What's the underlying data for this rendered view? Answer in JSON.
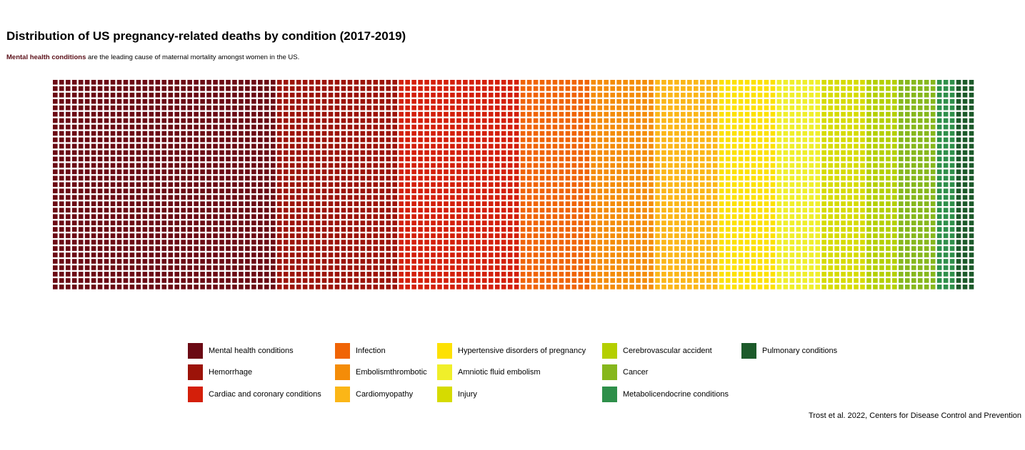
{
  "header": {
    "title": "Distribution of US pregnancy-related deaths by condition (2017-2019)",
    "subtitle_highlight": "Mental health conditions",
    "subtitle_rest": " are the leading cause of maternal mortality amongst women in the US."
  },
  "caption": "Trost et al. 2022, Centers for Disease Control and Prevention",
  "chart_data": {
    "type": "waffle",
    "title": "Distribution of US pregnancy-related deaths by condition (2017-2019)",
    "rows": 33,
    "columns": 144,
    "legend_placement": "bottom",
    "grid": false,
    "categories": [
      "Mental health conditions",
      "Hemorrhage",
      "Cardiac and coronary conditions",
      "Infection",
      "Embolismthrombotic",
      "Cardiomyopathy",
      "Hypertensive disorders of pregnancy",
      "Amniotic fluid embolism",
      "Injury",
      "Cerebrovascular accident",
      "Cancer",
      "Metabolicendocrine conditions",
      "Pulmonary conditions"
    ],
    "colors": [
      "#6b0a14",
      "#9c1309",
      "#d41f0a",
      "#f06405",
      "#f48c08",
      "#fbb617",
      "#fde102",
      "#f0ef2a",
      "#d6db00",
      "#b4cf00",
      "#86b71c",
      "#2e8f4a",
      "#1c5a2a"
    ],
    "column_counts": [
      35,
      19,
      19,
      11,
      10,
      10,
      9,
      7,
      7,
      5,
      6,
      3,
      3
    ],
    "values_percent": [
      24.3,
      13.2,
      13.2,
      7.6,
      6.9,
      6.9,
      6.3,
      4.9,
      4.9,
      3.5,
      4.2,
      2.1,
      2.1
    ]
  }
}
